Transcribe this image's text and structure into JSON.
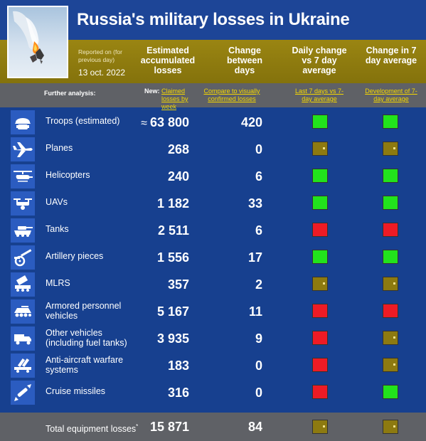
{
  "header": {
    "title": "Russia's military losses in Ukraine",
    "report_label": "Reported on (for previous day)",
    "report_date": "13 oct. 2022",
    "columns": {
      "estimated": "Estimated accumulated losses",
      "change": "Change between days",
      "daily": "Daily change vs 7 day average",
      "change7": "Change in 7 day average"
    }
  },
  "analysis": {
    "label": "Further analysis:",
    "new_prefix": "New:",
    "claimed_link": "Claimed losses by week",
    "compare_link": "Compare to visually confirmed losses",
    "last7_link": "Last 7 days vs 7-day average",
    "development_link": "Development of 7-day average"
  },
  "colors": {
    "background": "#17408f",
    "band": "#8c7a0f",
    "gray_row": "#5f6166",
    "status_green": "#22e31c",
    "status_red": "#ee1b25",
    "status_neutral": "#8d7a10",
    "link": "#f4d700"
  },
  "rows": [
    {
      "icon": "soldier-icon",
      "label": "Troops (estimated)",
      "approx": "≈",
      "value": "63 800",
      "change": "420",
      "daily": "green",
      "change7": "green"
    },
    {
      "icon": "plane-icon",
      "label": "Planes",
      "approx": "",
      "value": "268",
      "change": "0",
      "daily": "neutral",
      "change7": "neutral"
    },
    {
      "icon": "helicopter-icon",
      "label": "Helicopters",
      "approx": "",
      "value": "240",
      "change": "6",
      "daily": "green",
      "change7": "green"
    },
    {
      "icon": "drone-icon",
      "label": "UAVs",
      "approx": "",
      "value": "1 182",
      "change": "33",
      "daily": "green",
      "change7": "green"
    },
    {
      "icon": "tank-icon",
      "label": "Tanks",
      "approx": "",
      "value": "2 511",
      "change": "6",
      "daily": "red",
      "change7": "red"
    },
    {
      "icon": "artillery-icon",
      "label": "Artillery pieces",
      "approx": "",
      "value": "1 556",
      "change": "17",
      "daily": "green",
      "change7": "green"
    },
    {
      "icon": "mlrs-icon",
      "label": "MLRS",
      "approx": "",
      "value": "357",
      "change": "2",
      "daily": "neutral",
      "change7": "neutral"
    },
    {
      "icon": "apc-icon",
      "label": "Armored personnel vehicles",
      "approx": "",
      "value": "5 167",
      "change": "11",
      "daily": "red",
      "change7": "red"
    },
    {
      "icon": "truck-icon",
      "label": "Other vehicles (including fuel tanks)",
      "approx": "",
      "value": "3 935",
      "change": "9",
      "daily": "red",
      "change7": "neutral"
    },
    {
      "icon": "anti-aircraft-icon",
      "label": "Anti-aircraft warfare systems",
      "approx": "",
      "value": "183",
      "change": "0",
      "daily": "red",
      "change7": "neutral"
    },
    {
      "icon": "missile-icon",
      "label": "Cruise missiles",
      "approx": "",
      "value": "316",
      "change": "0",
      "daily": "red",
      "change7": "green"
    }
  ],
  "total": {
    "label": "Total equipment losses",
    "footnote_mark": "*",
    "value": "15 871",
    "change": "84",
    "daily": "neutral",
    "change7": "neutral"
  }
}
